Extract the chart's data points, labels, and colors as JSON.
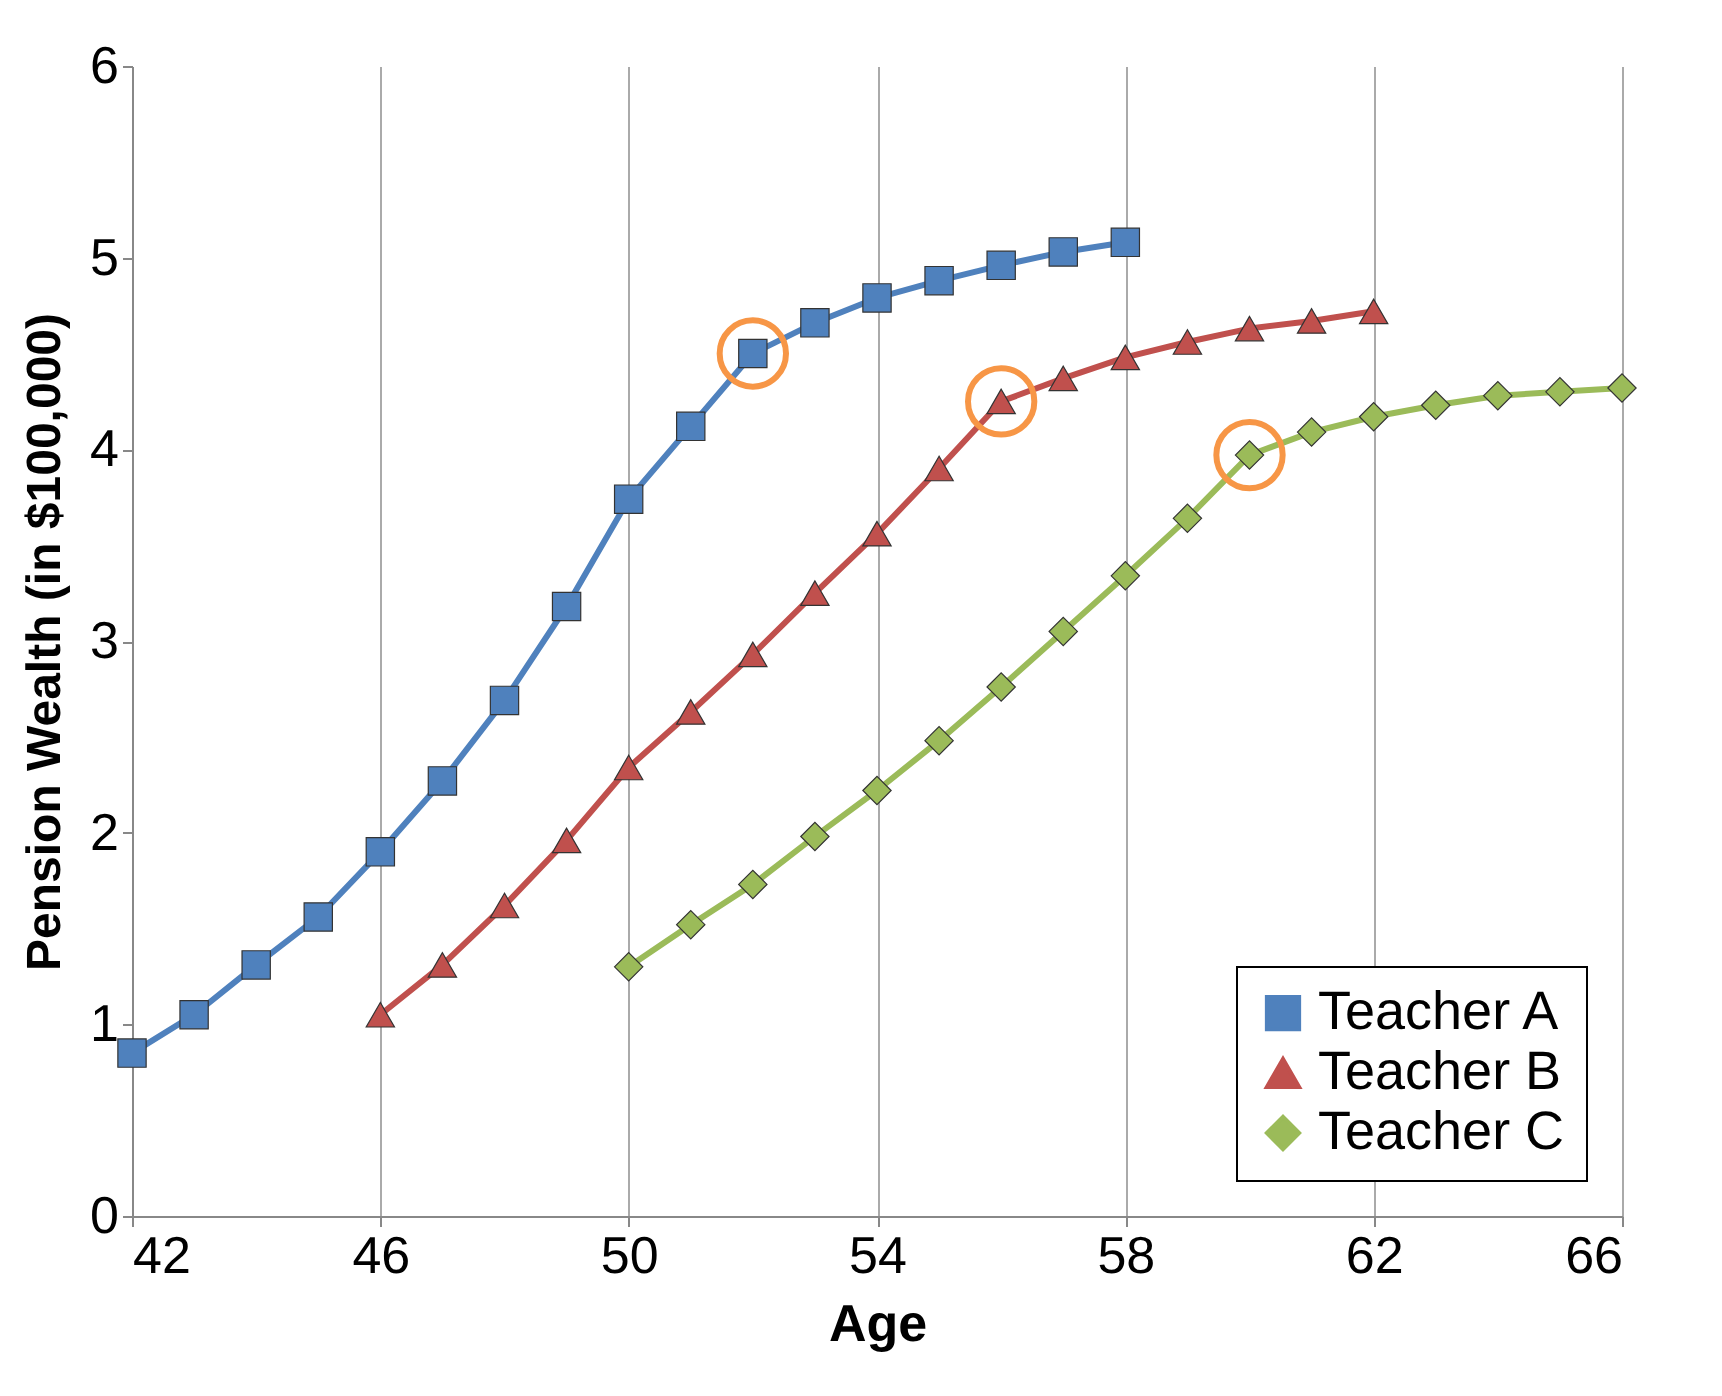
{
  "chart_data": {
    "type": "line",
    "xlabel": "Age",
    "ylabel": "Pension Wealth (in $100,000)",
    "xlim": [
      42,
      66
    ],
    "xticks": [
      42,
      46,
      50,
      54,
      58,
      62,
      66
    ],
    "ylim": [
      0,
      6
    ],
    "yticks": [
      0,
      1,
      2,
      3,
      4,
      5,
      6
    ],
    "grid": "x",
    "legend": "bottom right",
    "line_style": "solid",
    "series": [
      {
        "name": "Teacher A",
        "color": "#4f81bd",
        "marker": "square",
        "x": [
          42,
          43,
          44,
          45,
          46,
          47,
          48,
          49,
          50,
          51,
          52,
          53,
          54,
          55,
          56,
          57,
          58
        ],
        "values": [
          0.85,
          1.05,
          1.31,
          1.56,
          1.9,
          2.27,
          2.69,
          3.18,
          3.74,
          4.12,
          4.5,
          4.66,
          4.79,
          4.88,
          4.96,
          5.03,
          5.08
        ]
      },
      {
        "name": "Teacher B",
        "color": "#c0504d",
        "marker": "triangle",
        "x": [
          46,
          47,
          48,
          49,
          50,
          51,
          52,
          53,
          54,
          55,
          56,
          57,
          58,
          59,
          60,
          61,
          62
        ],
        "values": [
          1.05,
          1.31,
          1.62,
          1.96,
          2.34,
          2.63,
          2.93,
          3.25,
          3.56,
          3.9,
          4.25,
          4.37,
          4.48,
          4.56,
          4.63,
          4.67,
          4.72
        ]
      },
      {
        "name": "Teacher C",
        "color": "#9bbb59",
        "marker": "diamond",
        "x": [
          50,
          51,
          52,
          53,
          54,
          55,
          56,
          57,
          58,
          59,
          60,
          61,
          62,
          63,
          64,
          65,
          66
        ],
        "values": [
          1.3,
          1.52,
          1.73,
          1.98,
          2.22,
          2.48,
          2.76,
          3.05,
          3.34,
          3.64,
          3.97,
          4.09,
          4.17,
          4.23,
          4.28,
          4.3,
          4.32
        ]
      },
      {
        "type": "scatter",
        "color": "#f79646",
        "marker": "circle",
        "x": [
          52,
          56,
          60
        ],
        "values": [
          4.5,
          4.25,
          3.97
        ]
      }
    ]
  }
}
